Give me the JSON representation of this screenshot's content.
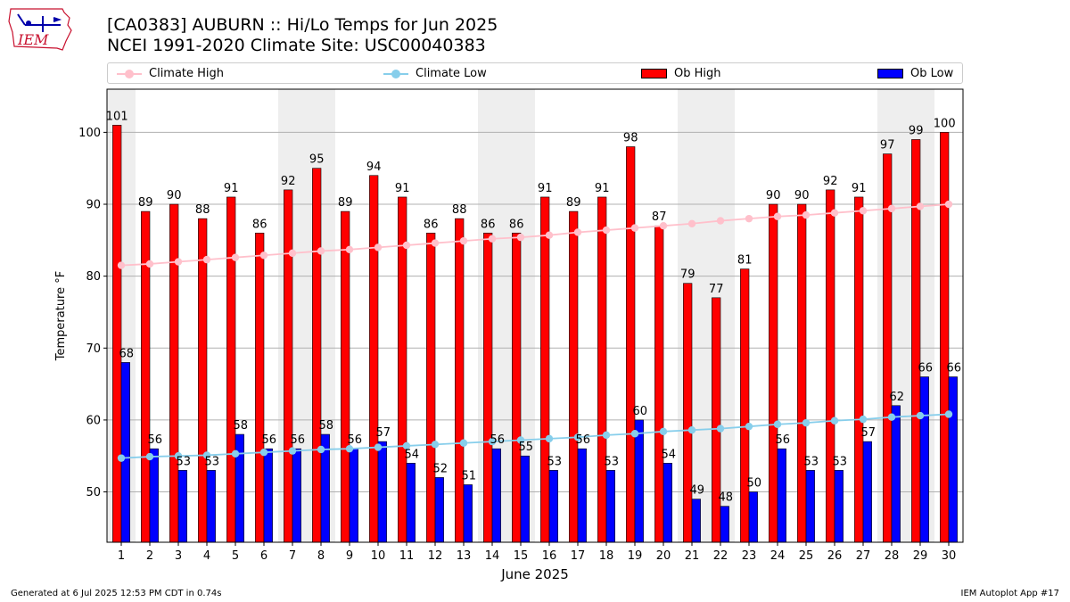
{
  "header": {
    "title_line1": "[CA0383] AUBURN :: Hi/Lo Temps for Jun 2025",
    "title_line2": "NCEI 1991-2020 Climate Site: USC00040383"
  },
  "logo": {
    "text": "IEM",
    "color": "#c8102e",
    "icon": "iowa-map-weather-station-logo"
  },
  "legend": {
    "items": [
      {
        "label": "Climate High",
        "kind": "line",
        "color": "#ffc0cb"
      },
      {
        "label": "Climate Low",
        "kind": "line",
        "color": "#87ceeb"
      },
      {
        "label": "Ob High",
        "kind": "bar",
        "color": "#ff0000"
      },
      {
        "label": "Ob Low",
        "kind": "bar",
        "color": "#0000ff"
      }
    ]
  },
  "footer": {
    "generated": "Generated at 6 Jul 2025 12:53 PM CDT in 0.74s",
    "app": "IEM Autoplot App #17"
  },
  "chart_data": {
    "type": "bar",
    "xlabel": "June 2025",
    "ylabel": "Temperature °F",
    "ylim": [
      43,
      106
    ],
    "yticks": [
      50,
      60,
      70,
      80,
      90,
      100
    ],
    "grid": "horizontal",
    "legend_position": "top",
    "categories": [
      1,
      2,
      3,
      4,
      5,
      6,
      7,
      8,
      9,
      10,
      11,
      12,
      13,
      14,
      15,
      16,
      17,
      18,
      19,
      20,
      21,
      22,
      23,
      24,
      25,
      26,
      27,
      28,
      29,
      30
    ],
    "weekend_shaded_days": [
      [
        1,
        1
      ],
      [
        7,
        8
      ],
      [
        14,
        15
      ],
      [
        21,
        22
      ],
      [
        28,
        29
      ]
    ],
    "series": [
      {
        "name": "Ob High",
        "kind": "bar",
        "color": "#ff0000",
        "values": [
          101,
          89,
          90,
          88,
          91,
          86,
          92,
          95,
          89,
          94,
          91,
          86,
          88,
          86,
          86,
          91,
          89,
          91,
          98,
          87,
          79,
          77,
          81,
          90,
          90,
          92,
          91,
          97,
          99,
          100
        ]
      },
      {
        "name": "Ob Low",
        "kind": "bar",
        "color": "#0000ff",
        "values": [
          68,
          56,
          53,
          53,
          58,
          56,
          56,
          58,
          56,
          57,
          54,
          52,
          51,
          56,
          55,
          53,
          56,
          53,
          60,
          54,
          49,
          48,
          50,
          56,
          53,
          53,
          57,
          62,
          66,
          66
        ]
      },
      {
        "name": "Climate High",
        "kind": "line",
        "color": "#ffc0cb",
        "values": [
          81.5,
          81.7,
          82.0,
          82.3,
          82.6,
          82.9,
          83.2,
          83.5,
          83.7,
          84.0,
          84.3,
          84.6,
          84.9,
          85.2,
          85.4,
          85.7,
          86.1,
          86.4,
          86.7,
          87.0,
          87.3,
          87.7,
          88.0,
          88.3,
          88.5,
          88.8,
          89.1,
          89.4,
          89.7,
          90.0
        ]
      },
      {
        "name": "Climate Low",
        "kind": "line",
        "color": "#87ceeb",
        "values": [
          54.7,
          54.9,
          55.0,
          55.1,
          55.3,
          55.5,
          55.7,
          55.9,
          56.0,
          56.2,
          56.4,
          56.6,
          56.8,
          57.0,
          57.2,
          57.4,
          57.6,
          57.9,
          58.1,
          58.4,
          58.6,
          58.8,
          59.1,
          59.4,
          59.6,
          59.9,
          60.1,
          60.4,
          60.6,
          60.8
        ]
      }
    ]
  }
}
